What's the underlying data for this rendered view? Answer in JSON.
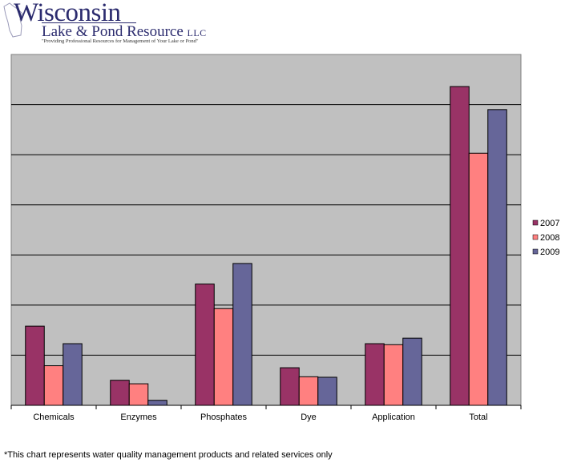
{
  "logo": {
    "name_line1": "Wisconsin",
    "name_line2": "Lake & Pond Resource",
    "name_suffix": "LLC",
    "tagline": "\"Providing Professional Resources for Management of Your Lake or Pond\""
  },
  "footnote": "*This chart represents water quality management products and related services only",
  "colors": {
    "plot_bg": "#c0c0c0",
    "s2007": "#993366",
    "s2008": "#ff8080",
    "s2009": "#666699"
  },
  "chart_data": {
    "type": "bar",
    "categories": [
      "Chemicals",
      "Enzymes",
      "Phosphates",
      "Dye",
      "Application",
      "Total"
    ],
    "series": [
      {
        "name": "2007",
        "values": [
          1.58,
          0.5,
          2.42,
          0.75,
          1.23,
          6.36
        ]
      },
      {
        "name": "2008",
        "values": [
          0.79,
          0.43,
          1.93,
          0.57,
          1.21,
          5.03
        ]
      },
      {
        "name": "2009",
        "values": [
          1.23,
          0.1,
          2.83,
          0.56,
          1.34,
          5.9
        ]
      }
    ],
    "ylim": [
      0,
      7
    ],
    "y_ticks_labeled": false,
    "gridlines": true,
    "legend_position": "right"
  }
}
